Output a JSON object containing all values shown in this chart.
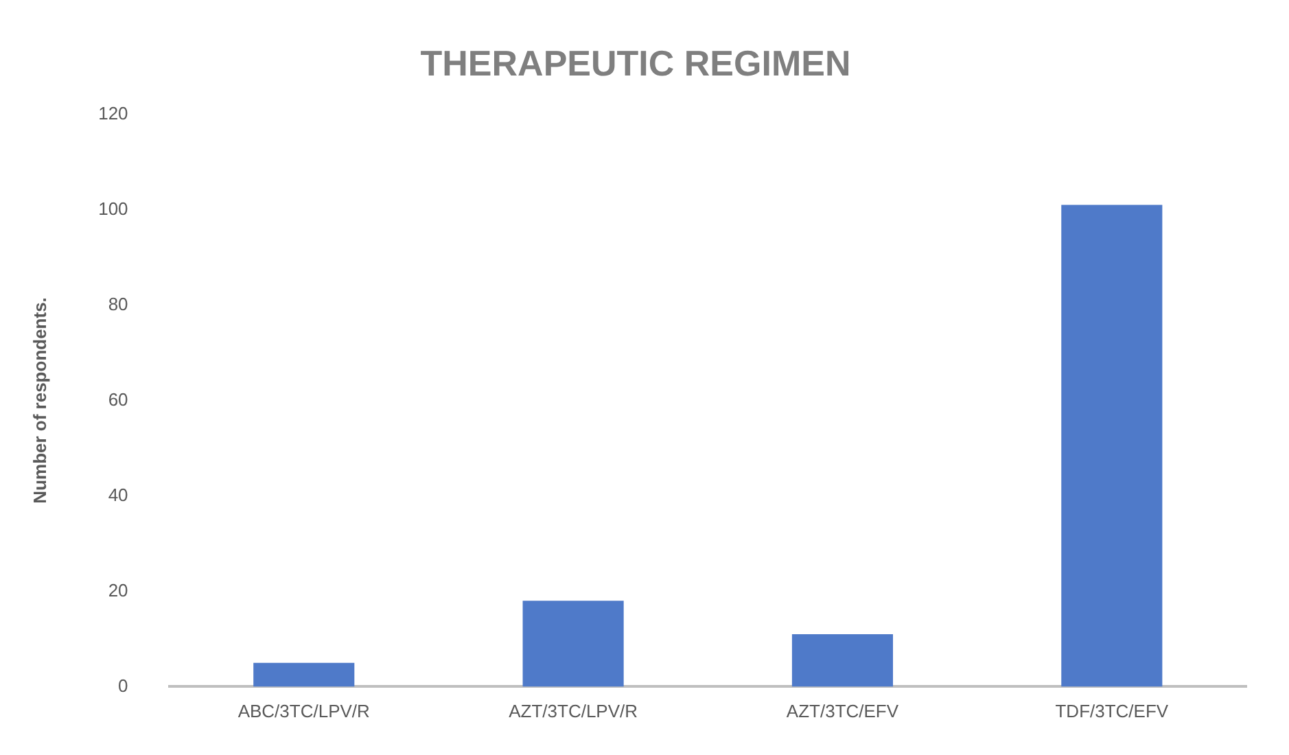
{
  "chart_data": {
    "type": "bar",
    "title": "THERAPEUTIC REGIMEN",
    "ylabel": "Number of respondents.",
    "categories": [
      "ABC/3TC/LPV/R",
      "AZT/3TC/LPV/R",
      "AZT/3TC/EFV",
      "TDF/3TC/EFV"
    ],
    "values": [
      5,
      18,
      11,
      101
    ],
    "color": "#4f7ac9",
    "ylim": [
      0,
      120
    ],
    "yticks": [
      0,
      20,
      40,
      60,
      80,
      100,
      120
    ],
    "grid": false,
    "legend": false
  }
}
